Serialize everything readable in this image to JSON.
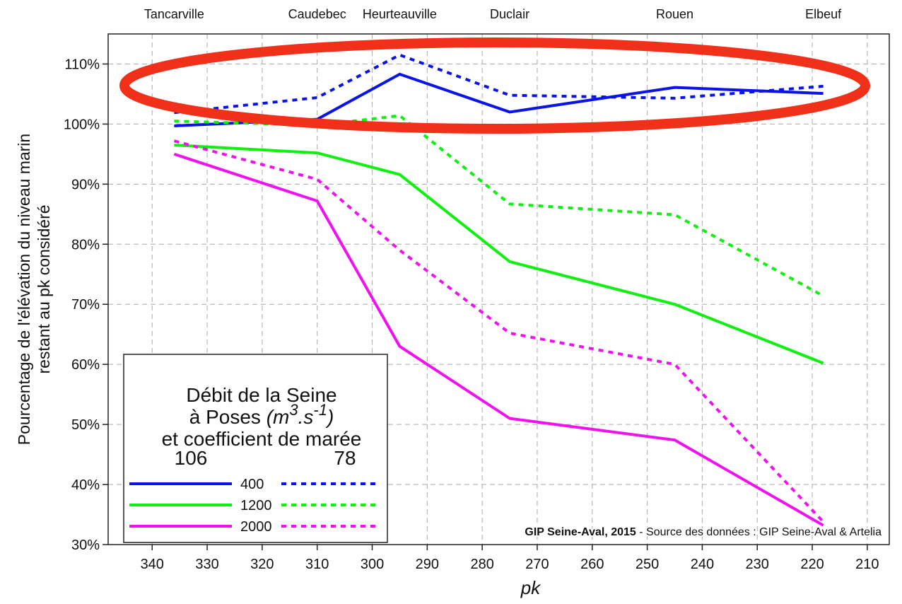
{
  "chart_data": {
    "type": "line",
    "x_label": "pk",
    "y_label": [
      "Pourcentage de l'élévation du niveau marin",
      "restant au pk considéré"
    ],
    "categories": [
      "Tancarville",
      "Caudebec",
      "Heurteauville",
      "Duclair",
      "Rouen",
      "Elbeuf"
    ],
    "x": [
      336,
      310,
      295,
      275,
      245,
      218
    ],
    "xlim": [
      348,
      206
    ],
    "xticks": [
      340,
      330,
      320,
      310,
      300,
      290,
      280,
      270,
      260,
      250,
      240,
      230,
      220,
      210
    ],
    "ylim": [
      30,
      115
    ],
    "yticks": [
      {
        "value": 30,
        "label": "30%"
      },
      {
        "value": 40,
        "label": "40%"
      },
      {
        "value": 50,
        "label": "50%"
      },
      {
        "value": 60,
        "label": "60%"
      },
      {
        "value": 70,
        "label": "70%"
      },
      {
        "value": 80,
        "label": "80%"
      },
      {
        "value": 90,
        "label": "90%"
      },
      {
        "value": 100,
        "label": "100%"
      },
      {
        "value": 110,
        "label": "110%"
      }
    ],
    "grid": true,
    "legend": {
      "title": [
        [
          "Débit de la Seine"
        ],
        [
          "à Poses ",
          "(m",
          "3",
          ".s",
          "-1",
          ")"
        ],
        [
          "et coefficient de marée"
        ]
      ],
      "coefficients": [
        "106",
        "78"
      ],
      "corner": "lower left"
    },
    "dash": [
      "solid",
      "dotted"
    ],
    "series": [
      {
        "name": "400",
        "color": "#0a14e6",
        "values": [
          [
            99.7,
            100.8,
            108.3,
            102,
            106.1,
            105.1
          ],
          [
            101.9,
            104.4,
            111.5,
            104.8,
            104.3,
            106.3
          ]
        ]
      },
      {
        "name": "1200",
        "color": "#10f010",
        "values": [
          [
            96.5,
            95.2,
            91.6,
            77.1,
            70,
            60.2
          ],
          [
            100.5,
            99.8,
            101.4,
            86.7,
            84.9,
            71.4
          ]
        ]
      },
      {
        "name": "2000",
        "color": "#f010f0",
        "values": [
          [
            95,
            87.2,
            63,
            51,
            47.4,
            33.2
          ],
          [
            97.2,
            90.8,
            79,
            65.2,
            60,
            33.8
          ]
        ]
      }
    ],
    "annotation": {
      "bold": "GIP Seine-Aval, 2015",
      "text": " - Source des données : GIP Seine-Aval & Artelia"
    }
  }
}
